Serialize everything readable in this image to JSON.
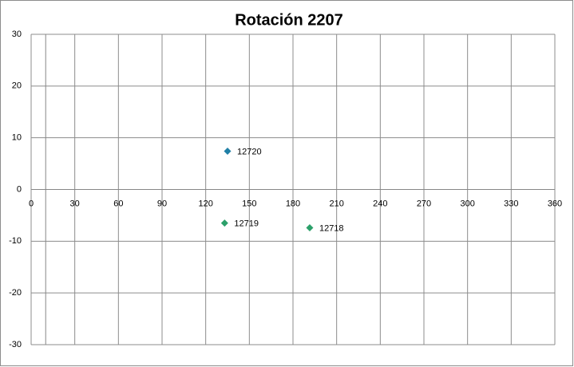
{
  "chart_data": {
    "type": "scatter",
    "title": "Rotación 2207",
    "series": [
      {
        "name": "12720",
        "color": "#1f7fa6",
        "x": [
          135
        ],
        "values": [
          7.4
        ]
      },
      {
        "name": "12719",
        "color": "#2ca06a",
        "x": [
          133
        ],
        "values": [
          -6.5
        ]
      },
      {
        "name": "12718",
        "color": "#2ca06a",
        "x": [
          191.5
        ],
        "values": [
          -7.4
        ]
      }
    ],
    "xlim": [
      0,
      360
    ],
    "xticks": [
      0,
      30,
      60,
      90,
      120,
      150,
      180,
      210,
      240,
      270,
      300,
      330,
      360
    ],
    "ylim": [
      -30,
      30
    ],
    "yticks": [
      -30,
      -20,
      -10,
      0,
      10,
      20,
      30
    ],
    "grid": true,
    "y_axis_at": 10
  }
}
